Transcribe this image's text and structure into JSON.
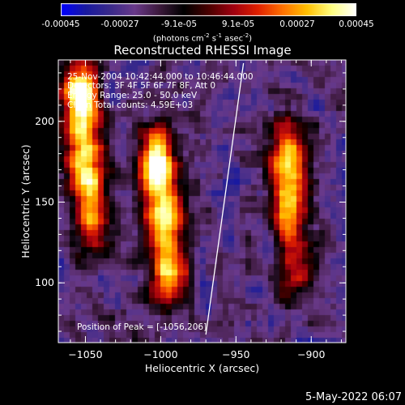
{
  "colorbar": {
    "tick_labels": [
      "-0.00045",
      "-0.00027",
      "-9.1e-05",
      "9.1e-05",
      "0.00027",
      "0.00045"
    ],
    "units_text": "(photons cm",
    "units_sup1": "-2",
    "units_mid": " s",
    "units_sup2": "-1",
    "units_mid2": " asec",
    "units_sup3": "-2",
    "units_end": ")"
  },
  "chart_data": {
    "type": "heatmap",
    "title": "Reconstructed RHESSI Image",
    "xlabel": "Heliocentric X (arcsec)",
    "ylabel": "Heliocentric Y (arcsec)",
    "xlim": [
      -1068,
      -877
    ],
    "ylim": [
      63,
      238
    ],
    "x_ticks": [
      -1050,
      -1000,
      -950,
      -900
    ],
    "y_ticks": [
      100,
      150,
      200
    ],
    "x_tick_labels": [
      "−1050",
      "−1000",
      "−950",
      "−900"
    ],
    "y_tick_labels": [
      "100",
      "150",
      "200"
    ],
    "colormap": [
      "#0000ff",
      "#1a1aa0",
      "#3a2a8a",
      "#6a3a8a",
      "#3d1a3d",
      "#000000",
      "#4a0000",
      "#a00010",
      "#e02000",
      "#ff7000",
      "#ffc000",
      "#ffff80",
      "#ffffff"
    ],
    "value_range": [
      -0.00045,
      0.00045
    ],
    "sources": [
      {
        "x": -1053,
        "y": 215,
        "peak": 1.0
      },
      {
        "x": -1050,
        "y": 175,
        "peak": 0.75
      },
      {
        "x": -1045,
        "y": 140,
        "peak": 0.55
      },
      {
        "x": -1002,
        "y": 175,
        "peak": 0.95
      },
      {
        "x": -998,
        "y": 140,
        "peak": 0.7
      },
      {
        "x": -995,
        "y": 105,
        "peak": 0.65
      },
      {
        "x": -915,
        "y": 180,
        "peak": 0.7
      },
      {
        "x": -913,
        "y": 145,
        "peak": 0.6
      },
      {
        "x": -910,
        "y": 110,
        "peak": 0.45
      }
    ],
    "limb_line": [
      [
        -970,
        68
      ],
      [
        -945,
        236
      ]
    ],
    "annotations": {
      "time": "25-Nov-2004 10:42:44.000 to 10:46:44.000",
      "detectors": "Detectors: 3F 4F 5F 6F 7F 8F, Att 0",
      "energy": "Energy Range: 25.0 - 50.0 keV",
      "clean": "Clean     Total counts: 4.59E+03",
      "peak": "Position of Peak = [-1056,206]"
    }
  },
  "footer": {
    "date": "5-May-2022 06:07"
  }
}
